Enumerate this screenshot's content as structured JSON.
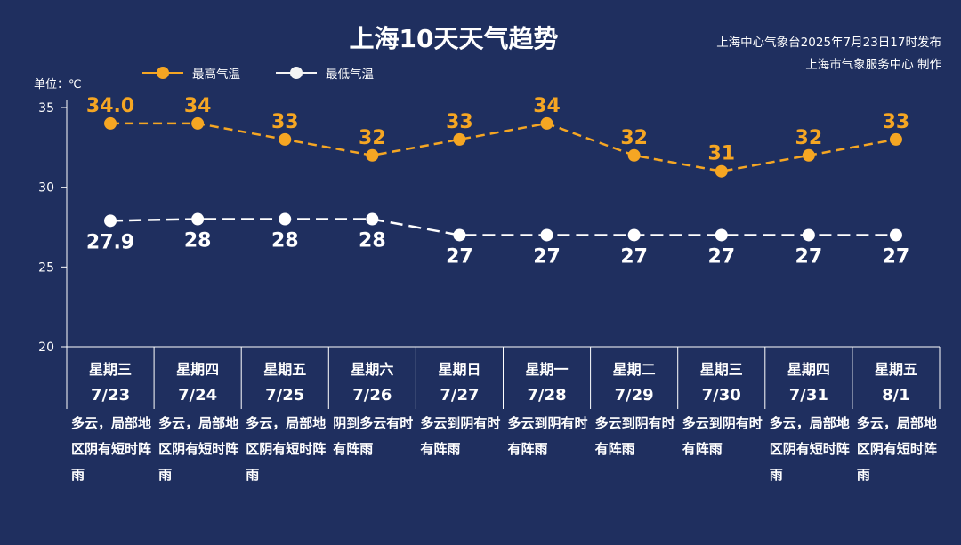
{
  "title": "上海10天天气趋势",
  "publisher_line1": "上海中心气象台2025年7月23日17时发布",
  "publisher_line2": "上海市气象服务中心 制作",
  "unit_label": "单位：℃",
  "colors": {
    "background": "#1f2f5f",
    "high": "#f5a623",
    "low": "#ffffff"
  },
  "chart_data": {
    "type": "line",
    "ylim": [
      20,
      35
    ],
    "yticks": [
      20,
      25,
      30,
      35
    ],
    "grid": false,
    "legend": "top-left",
    "categories": [
      "星期三",
      "星期四",
      "星期五",
      "星期六",
      "星期日",
      "星期一",
      "星期二",
      "星期三",
      "星期四",
      "星期五"
    ],
    "dates": [
      "7/23",
      "7/24",
      "7/25",
      "7/26",
      "7/27",
      "7/28",
      "7/29",
      "7/30",
      "7/31",
      "8/1"
    ],
    "descriptions": [
      "多云，局部地区阴有短时阵雨",
      "多云，局部地区阴有短时阵雨",
      "多云，局部地区阴有短时阵雨",
      "阴到多云有时有阵雨",
      "多云到阴有时有阵雨",
      "多云到阴有时有阵雨",
      "多云到阴有时有阵雨",
      "多云到阴有时有阵雨",
      "多云，局部地区阴有短时阵雨",
      "多云，局部地区阴有短时阵雨"
    ],
    "series": [
      {
        "name": "最高气温",
        "values": [
          34.0,
          34,
          33,
          32,
          33,
          34,
          32,
          31,
          32,
          33
        ],
        "labels": [
          "34.0",
          "34",
          "33",
          "32",
          "33",
          "34",
          "32",
          "31",
          "32",
          "33"
        ]
      },
      {
        "name": "最低气温",
        "values": [
          27.9,
          28,
          28,
          28,
          27,
          27,
          27,
          27,
          27,
          27
        ],
        "labels": [
          "27.9",
          "28",
          "28",
          "28",
          "27",
          "27",
          "27",
          "27",
          "27",
          "27"
        ]
      }
    ]
  }
}
